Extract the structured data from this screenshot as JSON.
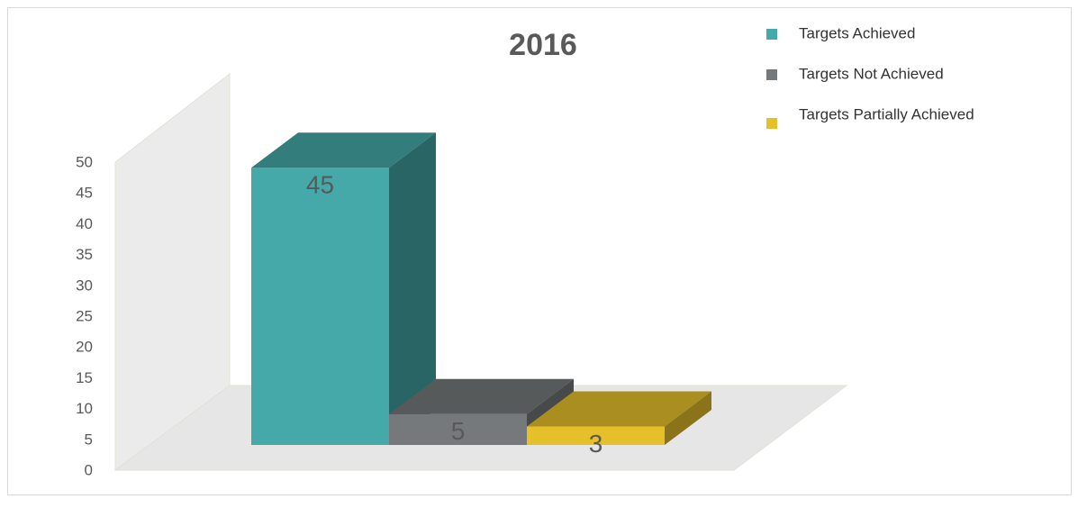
{
  "chart_data": {
    "type": "bar",
    "title": "2016",
    "categories": [
      null
    ],
    "series": [
      {
        "name": "Targets Achieved",
        "color": "#46a9a9",
        "values": [
          45
        ]
      },
      {
        "name": "Targets Not Achieved",
        "color": "#76797b",
        "values": [
          5
        ]
      },
      {
        "name": "Targets Partially Achieved",
        "color": "#e6c02a",
        "values": [
          3
        ]
      }
    ],
    "ylim": [
      0,
      50
    ],
    "yticks": [
      0,
      5,
      10,
      15,
      20,
      25,
      30,
      35,
      40,
      45,
      50
    ],
    "legend": "top-right",
    "grid": false
  }
}
